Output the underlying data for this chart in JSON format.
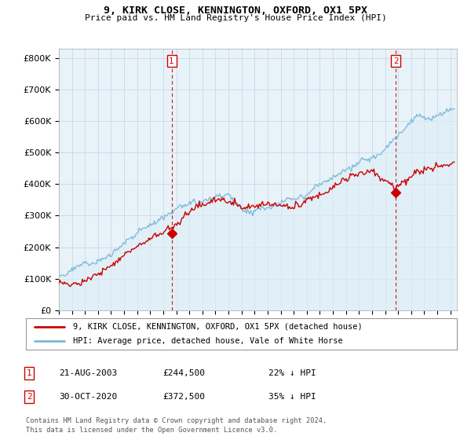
{
  "title": "9, KIRK CLOSE, KENNINGTON, OXFORD, OX1 5PX",
  "subtitle": "Price paid vs. HM Land Registry's House Price Index (HPI)",
  "ylim": [
    0,
    830000
  ],
  "yticks": [
    0,
    100000,
    200000,
    300000,
    400000,
    500000,
    600000,
    700000,
    800000
  ],
  "ytick_labels": [
    "£0",
    "£100K",
    "£200K",
    "£300K",
    "£400K",
    "£500K",
    "£600K",
    "£700K",
    "£800K"
  ],
  "xlim_start": 1995.0,
  "xlim_end": 2025.5,
  "marker1_x": 2003.64,
  "marker1_y": 244500,
  "marker2_x": 2020.83,
  "marker2_y": 372500,
  "legend_entry1": "9, KIRK CLOSE, KENNINGTON, OXFORD, OX1 5PX (detached house)",
  "legend_entry2": "HPI: Average price, detached house, Vale of White Horse",
  "table_rows": [
    {
      "num": "1",
      "date": "21-AUG-2003",
      "price": "£244,500",
      "change": "22% ↓ HPI"
    },
    {
      "num": "2",
      "date": "30-OCT-2020",
      "price": "£372,500",
      "change": "35% ↓ HPI"
    }
  ],
  "footnote1": "Contains HM Land Registry data © Crown copyright and database right 2024.",
  "footnote2": "This data is licensed under the Open Government Licence v3.0.",
  "hpi_color": "#7ab8d8",
  "hpi_fill_color": "#ddeef7",
  "price_color": "#cc0000",
  "marker_color": "#cc0000",
  "grid_color": "#c8d8e8",
  "background_color": "#ffffff",
  "chart_bg_color": "#e8f2f9"
}
